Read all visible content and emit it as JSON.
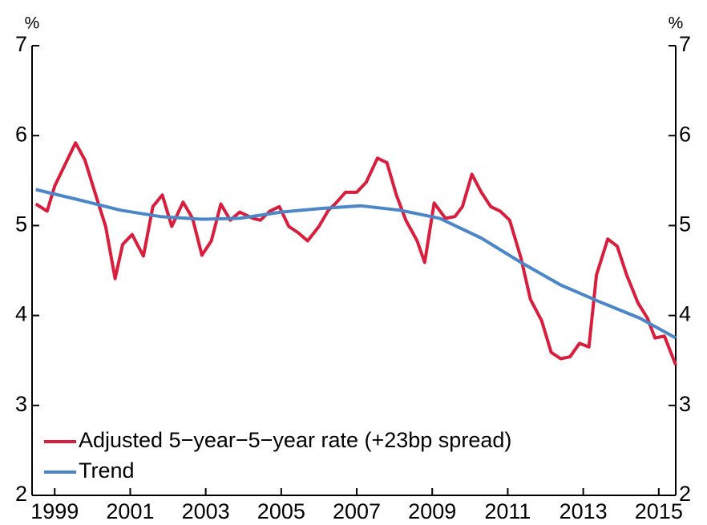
{
  "chart_data": {
    "type": "line",
    "y_unit": "%",
    "y2_unit": "%",
    "xlim": [
      1998.4,
      2015.45
    ],
    "xticks": [
      1999,
      2001,
      2003,
      2005,
      2007,
      2009,
      2011,
      2013,
      2015
    ],
    "ylim": [
      2,
      7
    ],
    "yticks": [
      2,
      3,
      4,
      5,
      6,
      7
    ],
    "y2lim": [
      2,
      7
    ],
    "y2ticks": [
      2,
      3,
      4,
      5,
      6,
      7
    ],
    "legend": "lower left",
    "series": [
      {
        "name": "Adjusted 5−year−5−year rate (+23bp spread)",
        "color": "#d81e3c",
        "x": [
          1998.5,
          1998.8,
          1999.0,
          1999.55,
          1999.8,
          2000.1,
          2000.35,
          2000.6,
          2000.8,
          2001.05,
          2001.35,
          2001.6,
          2001.85,
          2002.1,
          2002.4,
          2002.65,
          2002.9,
          2003.15,
          2003.4,
          2003.65,
          2003.9,
          2004.25,
          2004.45,
          2004.7,
          2004.95,
          2005.2,
          2005.45,
          2005.7,
          2006.0,
          2006.25,
          2006.45,
          2006.7,
          2007.0,
          2007.25,
          2007.55,
          2007.8,
          2008.05,
          2008.3,
          2008.6,
          2008.8,
          2009.05,
          2009.35,
          2009.6,
          2009.8,
          2010.05,
          2010.3,
          2010.55,
          2010.8,
          2011.05,
          2011.35,
          2011.6,
          2011.9,
          2012.15,
          2012.4,
          2012.65,
          2012.9,
          2013.15,
          2013.35,
          2013.65,
          2013.9,
          2014.15,
          2014.45,
          2014.7,
          2014.9,
          2015.15,
          2015.45
        ],
        "values": [
          5.24,
          5.16,
          5.44,
          5.92,
          5.73,
          5.32,
          4.99,
          4.41,
          4.79,
          4.9,
          4.66,
          5.21,
          5.34,
          4.99,
          5.26,
          5.08,
          4.67,
          4.83,
          5.24,
          5.06,
          5.15,
          5.08,
          5.06,
          5.16,
          5.21,
          4.99,
          4.92,
          4.83,
          4.99,
          5.17,
          5.25,
          5.37,
          5.37,
          5.48,
          5.75,
          5.7,
          5.34,
          5.06,
          4.83,
          4.59,
          5.25,
          5.08,
          5.1,
          5.21,
          5.57,
          5.37,
          5.21,
          5.16,
          5.06,
          4.64,
          4.18,
          3.94,
          3.59,
          3.52,
          3.54,
          3.69,
          3.65,
          4.45,
          4.85,
          4.77,
          4.45,
          4.14,
          3.97,
          3.75,
          3.77,
          3.45
        ]
      },
      {
        "name": "Trend",
        "color": "#4a86c8",
        "x": [
          1998.5,
          1999.7,
          2000.75,
          2001.8,
          2002.9,
          2003.9,
          2005.0,
          2006.05,
          2007.1,
          2008.15,
          2009.2,
          2010.3,
          2011.35,
          2012.4,
          2013.45,
          2014.5,
          2015.45
        ],
        "values": [
          5.4,
          5.28,
          5.17,
          5.1,
          5.07,
          5.08,
          5.15,
          5.19,
          5.22,
          5.17,
          5.08,
          4.86,
          4.59,
          4.34,
          4.15,
          3.97,
          3.75
        ]
      }
    ]
  }
}
